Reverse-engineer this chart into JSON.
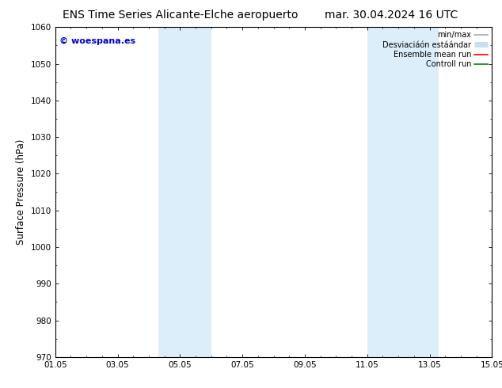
{
  "title_left": "ENS Time Series Alicante-Elche aeropuerto",
  "title_right": "mar. 30.04.2024 16 UTC",
  "ylabel": "Surface Pressure (hPa)",
  "xlim": [
    0,
    14
  ],
  "ylim": [
    970,
    1060
  ],
  "yticks": [
    970,
    980,
    990,
    1000,
    1010,
    1020,
    1030,
    1040,
    1050,
    1060
  ],
  "xticks": [
    0,
    2,
    4,
    6,
    8,
    10,
    12,
    14
  ],
  "xtick_labels": [
    "01.05",
    "03.05",
    "05.05",
    "07.05",
    "09.05",
    "11.05",
    "13.05",
    "15.05"
  ],
  "shaded_bands": [
    {
      "x_start": 3.3,
      "x_end": 5.0,
      "color": "#dceefa"
    },
    {
      "x_start": 10.0,
      "x_end": 12.3,
      "color": "#dceefa"
    }
  ],
  "watermark_text": "© woespana.es",
  "watermark_color": "#0000cc",
  "bg_color": "#ffffff",
  "legend_minmax_color": "#aaaaaa",
  "legend_std_color": "#c8dff0",
  "legend_ensemble_color": "#ff0000",
  "legend_control_color": "#008800",
  "title_fontsize": 10,
  "tick_fontsize": 7.5,
  "ylabel_fontsize": 8.5,
  "watermark_fontsize": 8,
  "legend_fontsize": 7
}
